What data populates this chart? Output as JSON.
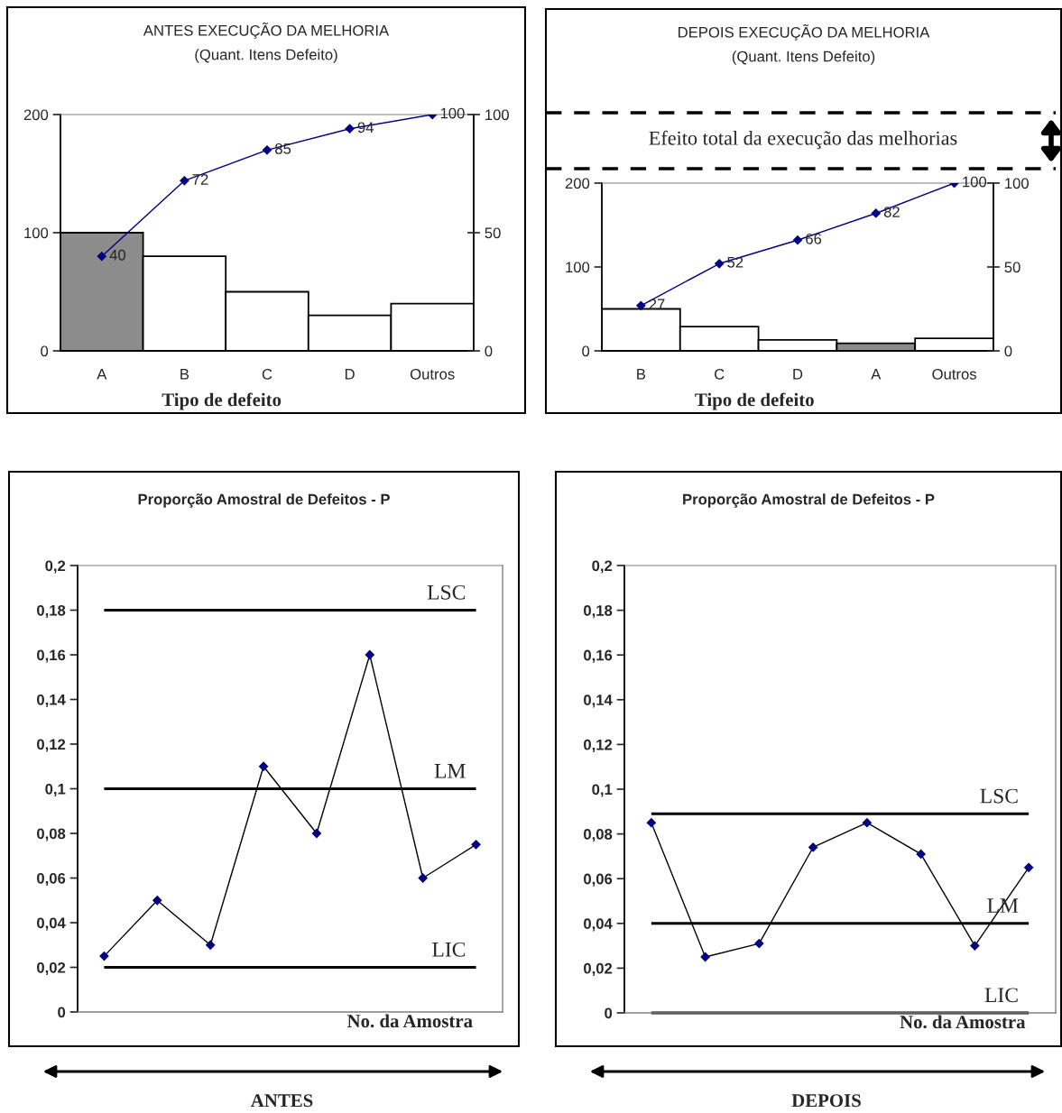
{
  "chart_data": [
    {
      "type": "bar",
      "title": "ANTES EXECUÇÃO DA MELHORIA",
      "subtitle": "(Quant. Itens Defeito)",
      "xlabel": "Tipo de defeito",
      "categories": [
        "A",
        "B",
        "C",
        "D",
        "Outros"
      ],
      "series": [
        {
          "type": "bar",
          "colors": [
            "#8c8c8c",
            "#ffffff",
            "#ffffff",
            "#ffffff",
            "#ffffff"
          ],
          "values": [
            100,
            80,
            50,
            30,
            40
          ]
        },
        {
          "type": "line",
          "axis": "y2",
          "color": "#000080",
          "values": [
            40,
            72,
            85,
            94,
            100
          ],
          "value_labels": [
            "40",
            "72",
            "85",
            "94",
            "100"
          ]
        }
      ],
      "ylim": [
        0,
        200
      ],
      "yticks": [
        0,
        100,
        200
      ],
      "y2lim": [
        0,
        100
      ],
      "y2ticks": [
        0,
        50,
        100
      ],
      "marker": "diamond",
      "line_style": "solid"
    },
    {
      "type": "bar",
      "title": "DEPOIS EXECUÇÃO DA MELHORIA",
      "subtitle": "(Quant. Itens Defeito)",
      "xlabel": "Tipo de defeito",
      "categories": [
        "B",
        "C",
        "D",
        "A",
        "Outros"
      ],
      "series": [
        {
          "type": "bar",
          "colors": [
            "#ffffff",
            "#ffffff",
            "#ffffff",
            "#8c8c8c",
            "#ffffff"
          ],
          "values": [
            50,
            29,
            13,
            9,
            15
          ]
        },
        {
          "type": "line",
          "axis": "y2",
          "color": "#000080",
          "values": [
            27,
            52,
            66,
            82,
            100
          ],
          "value_labels": [
            "27",
            "52",
            "66",
            "82",
            "100"
          ]
        }
      ],
      "ylim": [
        0,
        200
      ],
      "yticks": [
        0,
        100,
        200
      ],
      "y2lim": [
        0,
        100
      ],
      "y2ticks": [
        0,
        50,
        100
      ],
      "marker": "diamond",
      "line_style": "solid",
      "annotations": [
        "Efeito total da execução das melhorias"
      ]
    },
    {
      "type": "line",
      "title": "Proporção Amostral de Defeitos - P",
      "xlabel": "No. da Amostra",
      "categories": [
        null,
        null,
        null,
        null,
        null,
        null,
        null,
        null
      ],
      "series": [
        {
          "color": "#000000",
          "colors": [
            "#000080",
            "#000080",
            "#000080",
            "#000080",
            "#000080",
            "#000080",
            "#000080",
            "#000080"
          ],
          "values": [
            0.025,
            0.05,
            0.03,
            0.11,
            0.08,
            0.16,
            0.06,
            0.075
          ]
        }
      ],
      "ylim": [
        0,
        0.2
      ],
      "yticks": [
        0,
        {
          "value": 0.02,
          "label": "0,02"
        },
        {
          "value": 0.04,
          "label": "0,04"
        },
        {
          "value": 0.06,
          "label": "0,06"
        },
        {
          "value": 0.08,
          "label": "0,08"
        },
        {
          "value": 0.1,
          "label": "0,1"
        },
        {
          "value": 0.12,
          "label": "0,12"
        },
        {
          "value": 0.14,
          "label": "0,14"
        },
        {
          "value": 0.16,
          "label": "0,16"
        },
        {
          "value": 0.18,
          "label": "0,18"
        },
        {
          "value": 0.2,
          "label": "0,2"
        }
      ],
      "marker": "diamond",
      "line_style": "solid",
      "ref_lines": [
        {
          "axis": "y",
          "value": 0.18,
          "label": "LSC",
          "color": "#000000"
        },
        {
          "axis": "y",
          "value": 0.1,
          "label": "LM",
          "color": "#000000"
        },
        {
          "axis": "y",
          "value": 0.02,
          "label": "LIC",
          "color": "#000000"
        }
      ],
      "annotations": [
        "ANTES"
      ]
    },
    {
      "type": "line",
      "title": "Proporção Amostral de Defeitos - P",
      "xlabel": "No. da Amostra",
      "categories": [
        null,
        null,
        null,
        null,
        null,
        null,
        null,
        null
      ],
      "series": [
        {
          "color": "#000000",
          "colors": [
            "#000080",
            "#000080",
            "#000080",
            "#000080",
            "#000080",
            "#000080",
            "#000080",
            "#000080"
          ],
          "values": [
            0.085,
            0.025,
            0.031,
            0.074,
            0.085,
            0.071,
            0.03,
            0.065
          ]
        }
      ],
      "ylim": [
        0,
        0.2
      ],
      "yticks": [
        0,
        {
          "value": 0.02,
          "label": "0,02"
        },
        {
          "value": 0.04,
          "label": "0,04"
        },
        {
          "value": 0.06,
          "label": "0,06"
        },
        {
          "value": 0.08,
          "label": "0,08"
        },
        {
          "value": 0.1,
          "label": "0,1"
        },
        {
          "value": 0.12,
          "label": "0,12"
        },
        {
          "value": 0.14,
          "label": "0,14"
        },
        {
          "value": 0.16,
          "label": "0,16"
        },
        {
          "value": 0.18,
          "label": "0,18"
        },
        {
          "value": 0.2,
          "label": "0,2"
        }
      ],
      "marker": "diamond",
      "line_style": "solid",
      "ref_lines": [
        {
          "axis": "y",
          "value": 0.089,
          "label": "LSC",
          "color": "#000000"
        },
        {
          "axis": "y",
          "value": 0.04,
          "label": "LM",
          "color": "#000000"
        },
        {
          "axis": "y",
          "value": 0,
          "label": "LIC",
          "color": "#000000"
        }
      ],
      "annotations": [
        "DEPOIS"
      ]
    }
  ]
}
